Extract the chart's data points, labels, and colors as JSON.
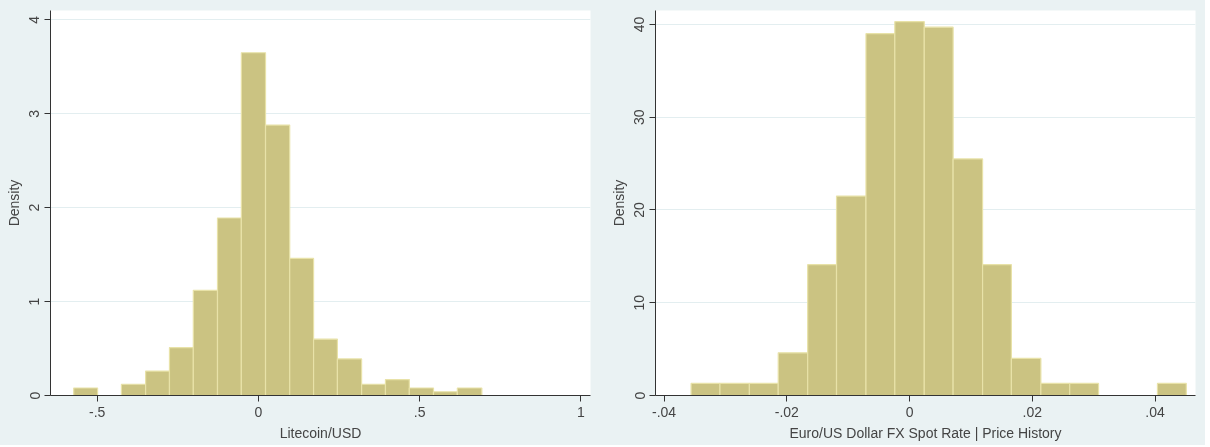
{
  "chart_data": [
    {
      "type": "histogram",
      "xlabel": "Litecoin/USD",
      "ylabel": "Density",
      "color": "#cbc382",
      "bins": [
        -0.573,
        -0.499,
        -0.425,
        -0.35,
        -0.276,
        -0.202,
        -0.127,
        -0.053,
        0.022,
        0.097,
        0.171,
        0.245,
        0.32,
        0.394,
        0.468,
        0.543,
        0.617,
        0.693
      ],
      "values": [
        0.08,
        0,
        0.12,
        0.26,
        0.51,
        1.12,
        1.89,
        3.65,
        2.88,
        1.46,
        0.6,
        0.39,
        0.12,
        0.17,
        0.08,
        0.04,
        0.08
      ],
      "xlim": [
        -0.645,
        1.03
      ],
      "ylim": [
        0,
        4.1
      ],
      "xticks": [
        {
          "value": -0.5,
          "label": "-.5"
        },
        0,
        {
          "value": 0.5,
          "label": ".5"
        },
        1
      ],
      "yticks": [
        0,
        1,
        2,
        3,
        4
      ],
      "grid": "y"
    },
    {
      "type": "histogram",
      "xlabel": "Euro/US Dollar FX Spot Rate | Price History",
      "ylabel": "Density",
      "color": "#cbc382",
      "bins": [
        -0.0356,
        -0.0309,
        -0.0261,
        -0.0214,
        -0.0166,
        -0.0119,
        -0.0071,
        -0.0024,
        0.0024,
        0.0071,
        0.0119,
        0.0166,
        0.0214,
        0.0261,
        0.0308,
        0.0404,
        0.0451
      ],
      "values": [
        1.3,
        1.3,
        1.3,
        4.6,
        14.1,
        21.5,
        39.0,
        40.3,
        39.7,
        25.5,
        14.1,
        4.0,
        1.3,
        1.3,
        0,
        1.3
      ],
      "xlim": [
        -0.0414,
        0.0466
      ],
      "ylim": [
        0,
        41.5
      ],
      "xticks": [
        {
          "value": -0.04,
          "label": "-.04"
        },
        {
          "value": -0.02,
          "label": "-.02"
        },
        0,
        {
          "value": 0.02,
          "label": ".02"
        },
        {
          "value": 0.04,
          "label": ".04"
        }
      ],
      "yticks": [
        0,
        10,
        20,
        30,
        40
      ],
      "grid": "y"
    }
  ]
}
